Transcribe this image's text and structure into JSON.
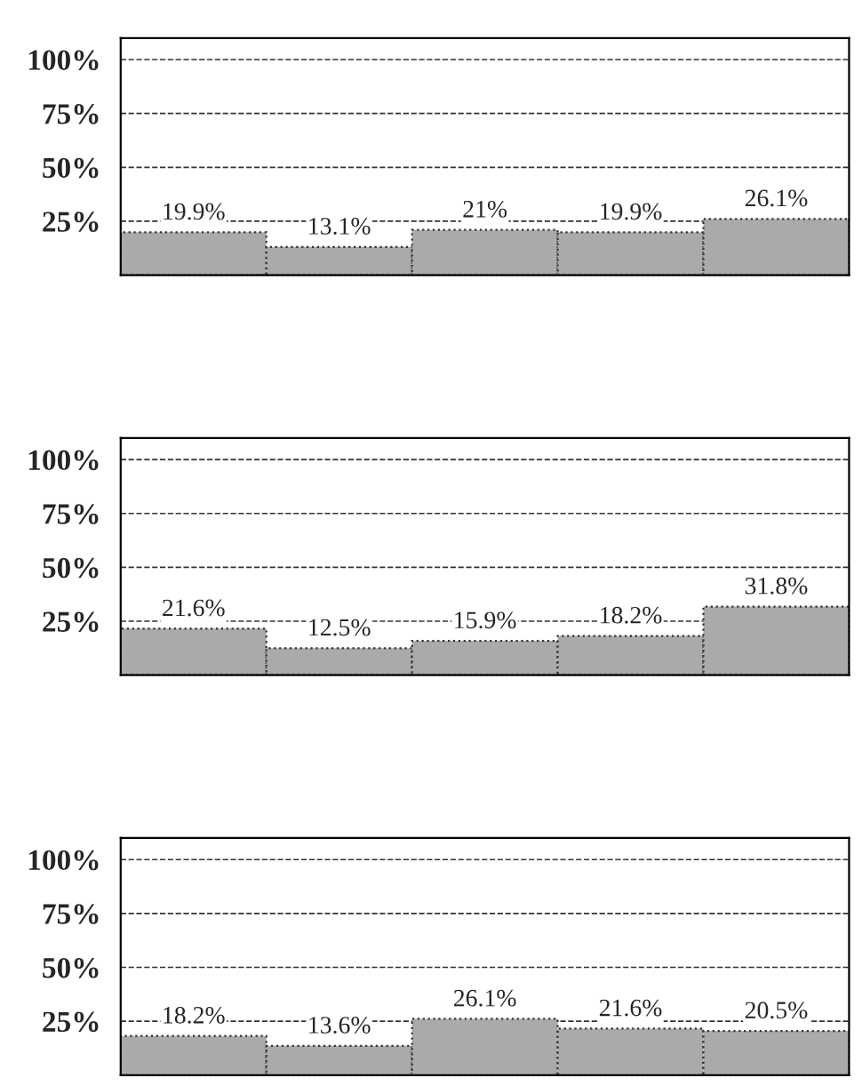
{
  "chart_data": [
    {
      "type": "bar",
      "categories": [
        null,
        null,
        null,
        null,
        null
      ],
      "values": [
        19.9,
        13.1,
        21,
        19.9,
        26.1
      ],
      "value_labels": [
        "19.9%",
        "13.1%",
        "21%",
        "19.9%",
        "26.1%"
      ],
      "color": "#aaaaaa",
      "ylim": [
        0,
        110
      ],
      "yticks": [
        {
          "value": 25,
          "label": "25%"
        },
        {
          "value": 50,
          "label": "50%"
        },
        {
          "value": 75,
          "label": "75%"
        },
        {
          "value": 100,
          "label": "100%"
        }
      ],
      "grid": "y"
    },
    {
      "type": "bar",
      "categories": [
        null,
        null,
        null,
        null,
        null
      ],
      "values": [
        21.6,
        12.5,
        15.9,
        18.2,
        31.8
      ],
      "value_labels": [
        "21.6%",
        "12.5%",
        "15.9%",
        "18.2%",
        "31.8%"
      ],
      "color": "#aaaaaa",
      "ylim": [
        0,
        110
      ],
      "yticks": [
        {
          "value": 25,
          "label": "25%"
        },
        {
          "value": 50,
          "label": "50%"
        },
        {
          "value": 75,
          "label": "75%"
        },
        {
          "value": 100,
          "label": "100%"
        }
      ],
      "grid": "y"
    },
    {
      "type": "bar",
      "categories": [
        null,
        null,
        null,
        null,
        null
      ],
      "values": [
        18.2,
        13.6,
        26.1,
        21.6,
        20.5
      ],
      "value_labels": [
        "18.2%",
        "13.6%",
        "26.1%",
        "21.6%",
        "20.5%"
      ],
      "color": "#aaaaaa",
      "ylim": [
        0,
        110
      ],
      "yticks": [
        {
          "value": 25,
          "label": "25%"
        },
        {
          "value": 50,
          "label": "50%"
        },
        {
          "value": 75,
          "label": "75%"
        },
        {
          "value": 100,
          "label": "100%"
        }
      ],
      "grid": "y"
    }
  ]
}
